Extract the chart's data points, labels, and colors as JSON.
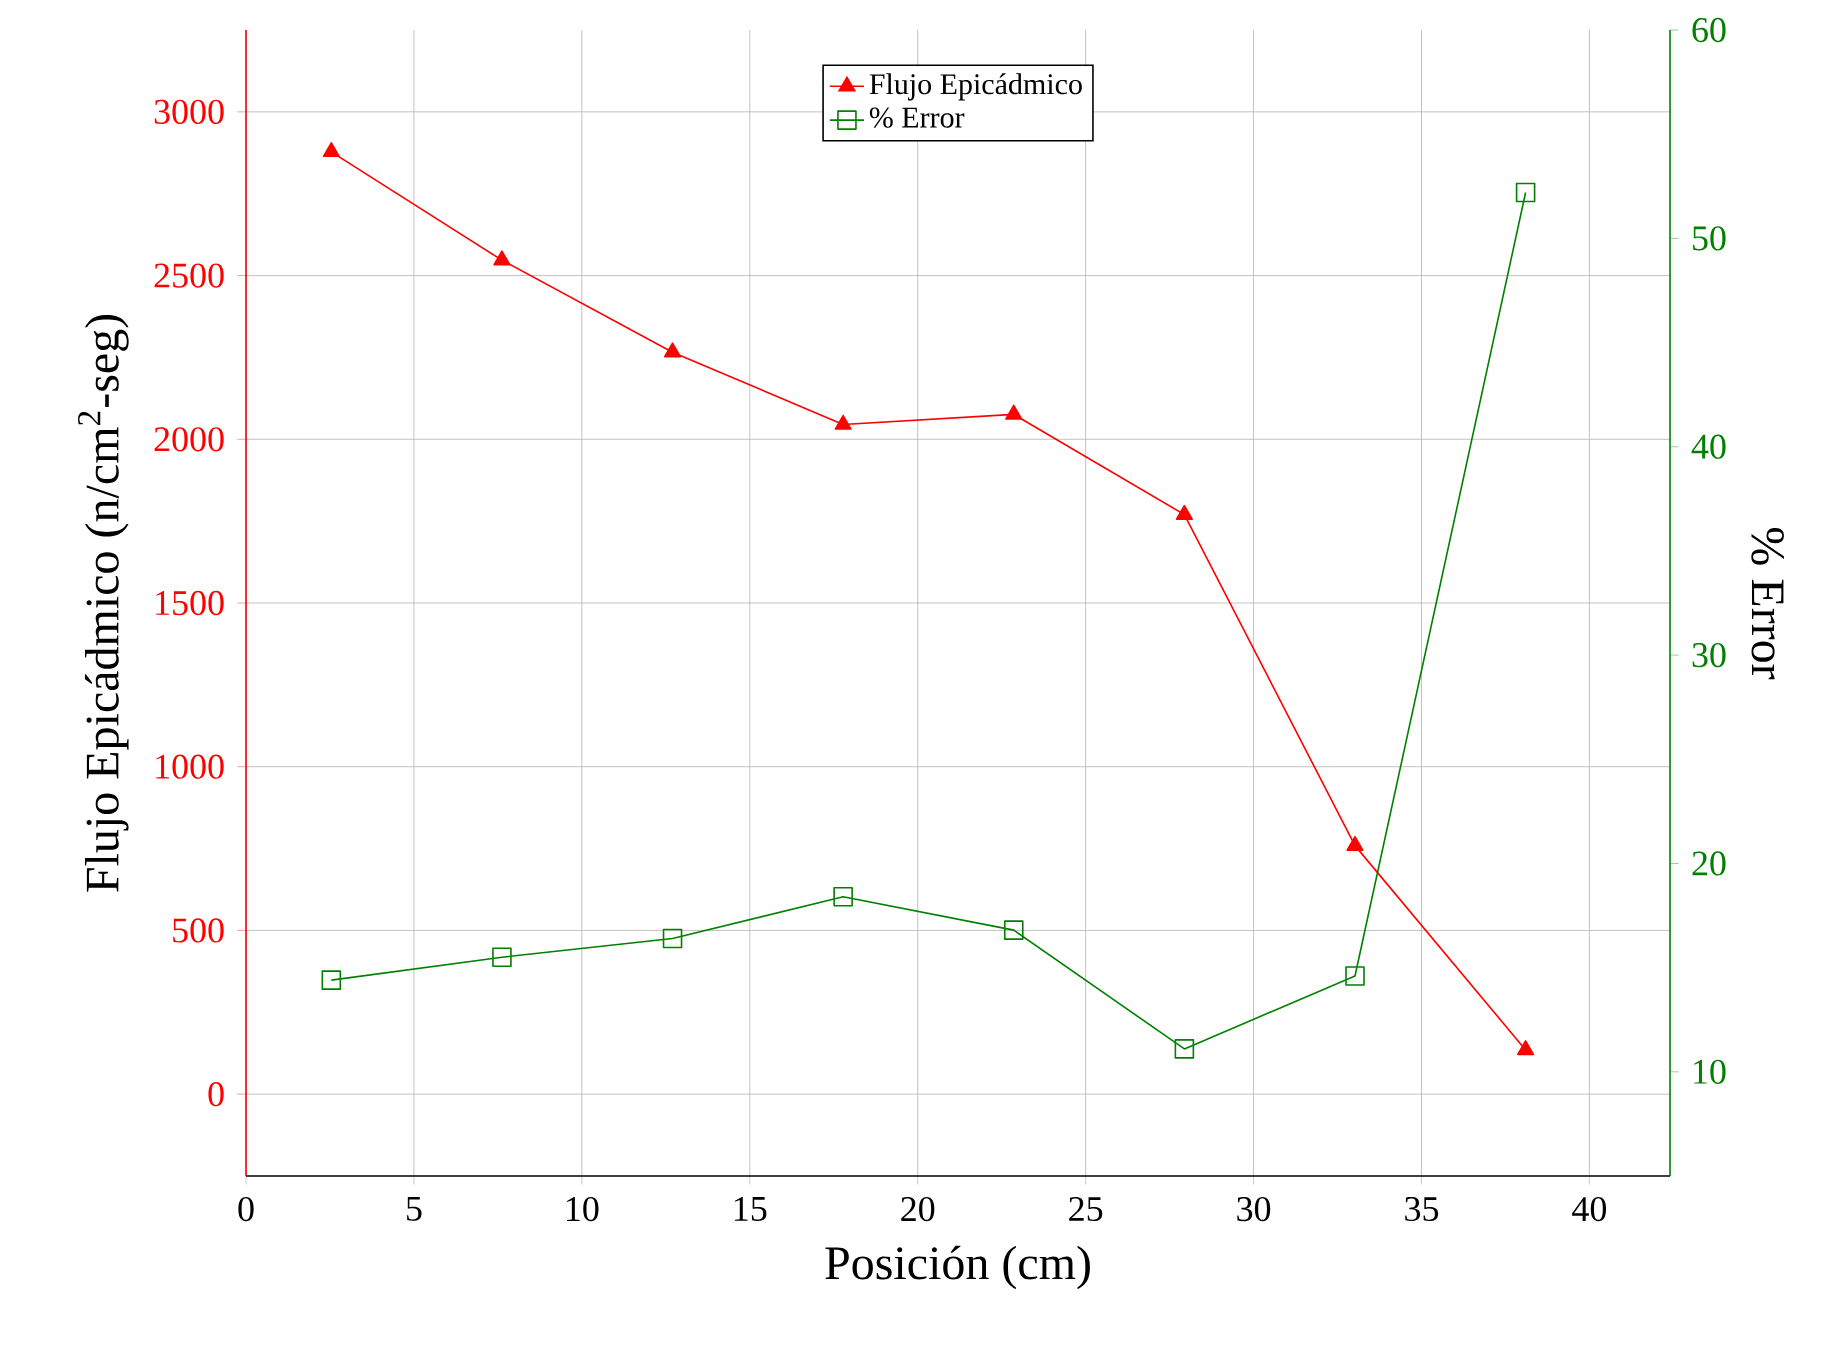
{
  "chart_data": {
    "type": "line",
    "xlabel": "Posición (cm)",
    "ylabel": "Flujo Epicádmico (n/cm$^{2}$-seg)",
    "y2label": "% Error",
    "x": [
      2.54,
      7.62,
      12.7,
      17.78,
      22.86,
      27.94,
      33.02,
      38.1
    ],
    "series": [
      {
        "name": "Flujo Epicádmico",
        "color": "#ff0000",
        "marker": "triangle",
        "values": [
          2878,
          2547,
          2266,
          2045,
          2076,
          1770,
          759,
          135
        ]
      },
      {
        "name": "% Error",
        "color": "#008000",
        "marker": "square",
        "axis": "y2",
        "values": [
          14.4,
          15.5,
          16.4,
          18.4,
          16.8,
          11.1,
          14.6,
          52.2
        ]
      }
    ],
    "xlim": [
      0,
      42.4
    ],
    "xticks": [
      0,
      5,
      10,
      15,
      20,
      25,
      30,
      35,
      40
    ],
    "ylim": [
      -250,
      3250
    ],
    "yticks": [
      0,
      500,
      1000,
      1500,
      2000,
      2500,
      3000
    ],
    "y2lim": [
      5,
      60
    ],
    "y2ticks": [
      10,
      20,
      30,
      40,
      50,
      60
    ],
    "grid": true,
    "legend": "top"
  }
}
